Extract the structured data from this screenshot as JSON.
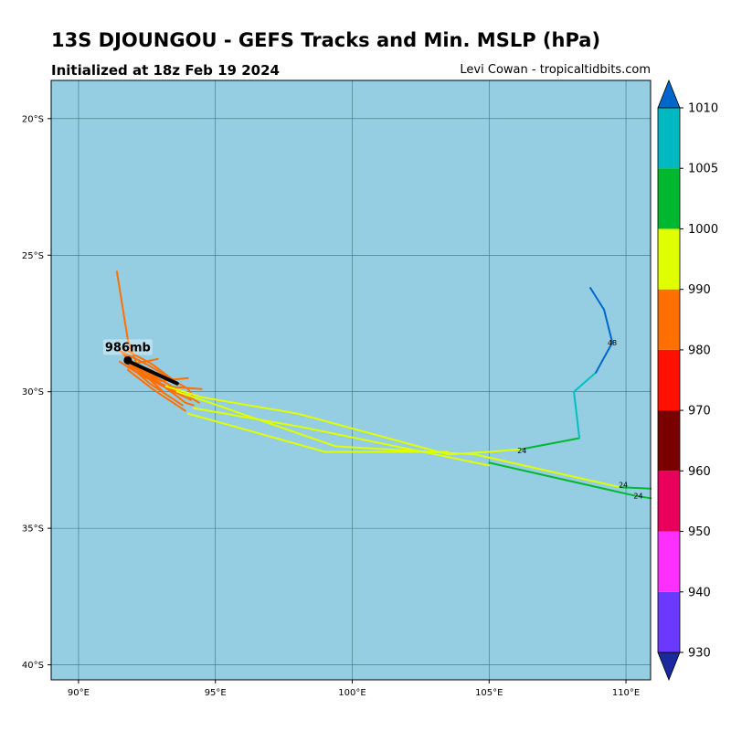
{
  "header": {
    "title": "13S DJOUNGOU - GEFS Tracks and Min. MSLP (hPa)",
    "subtitle": "Initialized at 18z Feb 19 2024",
    "credit": "Levi Cowan - tropicaltidbits.com"
  },
  "colors": {
    "ocean": "#95cee3",
    "grid": "#3c6f7d",
    "mean_track": "#000000"
  },
  "map_extent": {
    "lon_min": 89,
    "lon_max": 110.9,
    "lat_min": -40.55,
    "lat_max": -18.6
  },
  "axes": {
    "lon_ticks": [
      90,
      95,
      100,
      105,
      110
    ],
    "lon_tick_labels": [
      "90°E",
      "95°E",
      "100°E",
      "105°E",
      "110°E"
    ],
    "lat_ticks": [
      -20,
      -25,
      -30,
      -35,
      -40
    ],
    "lat_tick_labels": [
      "20°S",
      "25°S",
      "30°S",
      "35°S",
      "40°S"
    ]
  },
  "storm": {
    "label": "986mb",
    "lon": 91.8,
    "lat": -28.85
  },
  "chart_data": {
    "type": "map-tracks",
    "mean_track": [
      [
        91.75,
        -28.85
      ],
      [
        93.6,
        -29.7
      ]
    ],
    "tracks": [
      {
        "color": "#ff7000",
        "points": [
          [
            91.4,
            -25.6
          ],
          [
            91.8,
            -28.1
          ],
          [
            92.2,
            -29.2
          ],
          [
            93.1,
            -30.0
          ]
        ]
      },
      {
        "color": "#ff7000",
        "points": [
          [
            91.5,
            -28.5
          ],
          [
            92.5,
            -29.0
          ],
          [
            94.0,
            -29.9
          ],
          [
            94.2,
            -30.2
          ]
        ]
      },
      {
        "color": "#ff7000",
        "points": [
          [
            91.6,
            -28.6
          ],
          [
            92.6,
            -29.4
          ],
          [
            93.9,
            -30.4
          ],
          [
            94.2,
            -30.5
          ]
        ]
      },
      {
        "color": "#ff7000",
        "points": [
          [
            91.7,
            -28.7
          ],
          [
            92.0,
            -29.1
          ],
          [
            93.1,
            -29.8
          ],
          [
            94.5,
            -29.9
          ]
        ]
      },
      {
        "color": "#ff7000",
        "points": [
          [
            91.9,
            -29.0
          ],
          [
            92.9,
            -28.8
          ]
        ]
      },
      {
        "color": "#ff7000",
        "points": [
          [
            91.5,
            -28.9
          ],
          [
            92.3,
            -29.4
          ],
          [
            93.9,
            -30.2
          ]
        ]
      },
      {
        "color": "#ff7000",
        "points": [
          [
            91.8,
            -29.1
          ],
          [
            93.2,
            -29.8
          ],
          [
            94.1,
            -30.3
          ]
        ]
      },
      {
        "color": "#ff7000",
        "points": [
          [
            91.8,
            -29.2
          ],
          [
            92.7,
            -29.9
          ],
          [
            93.9,
            -30.7
          ]
        ]
      },
      {
        "color": "#ff7000",
        "points": [
          [
            91.9,
            -29.0
          ],
          [
            93.0,
            -29.6
          ],
          [
            94.0,
            -29.5
          ]
        ]
      },
      {
        "color": "#ff7000",
        "points": [
          [
            91.7,
            -28.8
          ],
          [
            92.9,
            -29.5
          ],
          [
            94.4,
            -30.4
          ]
        ]
      },
      {
        "color": "#ff7000",
        "points": [
          [
            91.8,
            -29.0
          ],
          [
            92.6,
            -29.7
          ],
          [
            93.8,
            -30.5
          ]
        ]
      },
      {
        "color": "#ff7000",
        "points": [
          [
            91.6,
            -28.4
          ],
          [
            92.7,
            -29.0
          ],
          [
            93.5,
            -29.6
          ]
        ]
      },
      {
        "color": "#dfff00",
        "points": [
          [
            93.2,
            -29.8
          ],
          [
            94.5,
            -30.2
          ],
          [
            98.0,
            -30.8
          ],
          [
            103.5,
            -32.3
          ],
          [
            105.0,
            -32.2
          ],
          [
            106.2,
            -32.1
          ]
        ]
      },
      {
        "color": "#dfff00",
        "points": [
          [
            93.6,
            -30.0
          ],
          [
            94.8,
            -30.4
          ],
          [
            99.4,
            -32.0
          ],
          [
            104.5,
            -32.3
          ],
          [
            109.8,
            -33.5
          ]
        ]
      },
      {
        "color": "#dfff00",
        "points": [
          [
            94.0,
            -30.8
          ],
          [
            99.0,
            -32.2
          ],
          [
            103.5,
            -32.2
          ]
        ]
      },
      {
        "color": "#dfff00",
        "points": [
          [
            94.2,
            -30.6
          ],
          [
            98.2,
            -31.3
          ],
          [
            105.0,
            -32.7
          ]
        ]
      },
      {
        "color": "#00b82f",
        "points": [
          [
            106.2,
            -32.1
          ],
          [
            108.3,
            -31.7
          ]
        ]
      },
      {
        "color": "#00b82f",
        "points": [
          [
            109.8,
            -33.5
          ],
          [
            110.9,
            -33.55
          ]
        ]
      },
      {
        "color": "#00b82f",
        "points": [
          [
            105.0,
            -32.6
          ],
          [
            110.3,
            -33.8
          ],
          [
            110.9,
            -33.9
          ]
        ]
      },
      {
        "color": "#00bfc0",
        "points": [
          [
            108.3,
            -31.7
          ],
          [
            108.1,
            -30.0
          ],
          [
            108.9,
            -29.3
          ]
        ]
      },
      {
        "color": "#0066cc",
        "points": [
          [
            108.9,
            -29.3
          ],
          [
            109.5,
            -28.2
          ],
          [
            109.2,
            -27.0
          ],
          [
            108.7,
            -26.2
          ]
        ]
      }
    ],
    "hour_labels": [
      {
        "text": "48",
        "lon": 109.5,
        "lat": -28.2
      },
      {
        "text": "24",
        "lon": 106.2,
        "lat": -32.15
      },
      {
        "text": "24",
        "lon": 109.9,
        "lat": -33.4
      },
      {
        "text": "24",
        "lon": 110.45,
        "lat": -33.8
      }
    ],
    "colorbar": {
      "levels": [
        930,
        940,
        950,
        960,
        970,
        980,
        990,
        1000,
        1005,
        1010
      ],
      "tick_labels": [
        "930",
        "940",
        "950",
        "960",
        "970",
        "980",
        "990",
        "1000",
        "1005",
        "1010"
      ],
      "colors": [
        "#6a38ff",
        "#ff30ff",
        "#e8005a",
        "#7a0000",
        "#ff1000",
        "#ff7000",
        "#dfff00",
        "#00b82f",
        "#00b8c0"
      ],
      "under_color": "#1a2a9e",
      "over_color": "#0066cc"
    }
  }
}
